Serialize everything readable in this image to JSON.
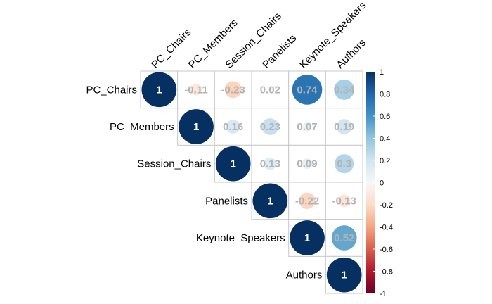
{
  "chart_data": {
    "type": "heatmap",
    "variables": [
      "PC_Chairs",
      "PC_Members",
      "Session_Chairs",
      "Panelists",
      "Keynote_Speakers",
      "Authors"
    ],
    "matrix": [
      [
        1,
        -0.11,
        -0.23,
        0.02,
        0.74,
        0.34
      ],
      [
        null,
        1,
        0.16,
        0.23,
        0.07,
        0.19
      ],
      [
        null,
        null,
        1,
        0.13,
        0.09,
        0.3
      ],
      [
        null,
        null,
        null,
        1,
        -0.22,
        -0.13
      ],
      [
        null,
        null,
        null,
        null,
        1,
        0.52
      ],
      [
        null,
        null,
        null,
        null,
        null,
        1
      ]
    ],
    "labels": [
      [
        "1",
        "-0.11",
        "-0.23",
        "0.02",
        "0.74",
        "0.34"
      ],
      [
        null,
        "1",
        "0.16",
        "0.23",
        "0.07",
        "0.19"
      ],
      [
        null,
        null,
        "1",
        "0.13",
        "0.09",
        "0.3"
      ],
      [
        null,
        null,
        null,
        "1",
        "-0.22",
        "-0.13"
      ],
      [
        null,
        null,
        null,
        null,
        "1",
        "0.52"
      ],
      [
        null,
        null,
        null,
        null,
        null,
        "1"
      ]
    ],
    "display": "upper triangle, circles sized and colored by correlation",
    "color_scale": {
      "range": [
        -1,
        1
      ],
      "ticks": [
        "1",
        "0.8",
        "0.6",
        "0.4",
        "0.2",
        "0",
        "-0.2",
        "-0.4",
        "-0.6",
        "-0.8",
        "-1"
      ],
      "colors": {
        "negative": "#67001f",
        "zero": "#f7f7f7",
        "positive": "#053061"
      }
    },
    "legend_placement": "right"
  }
}
